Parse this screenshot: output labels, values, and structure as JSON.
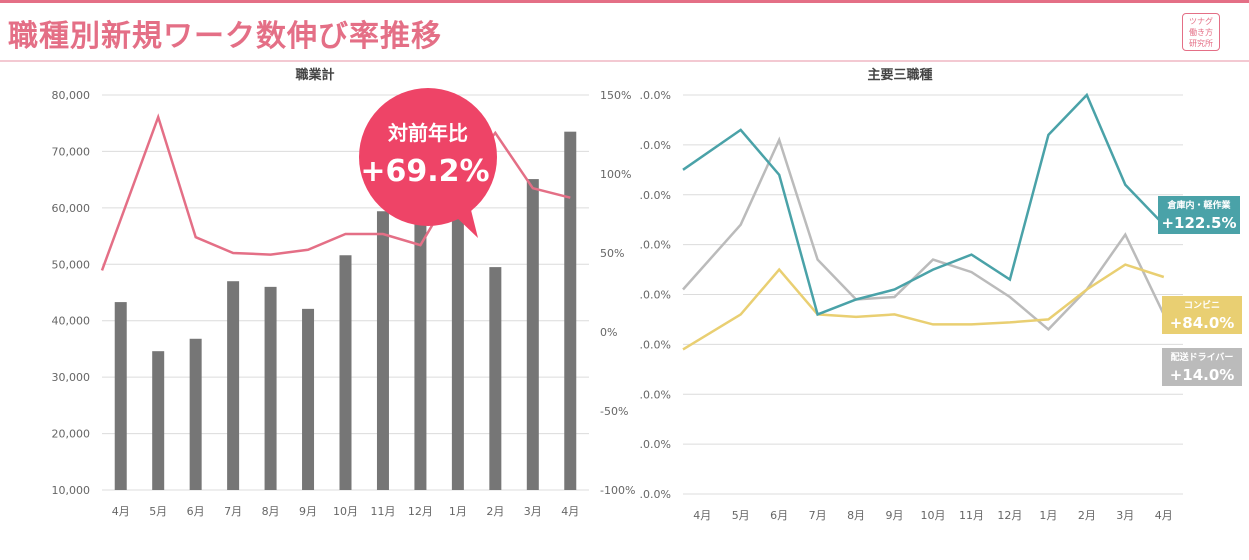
{
  "header": {
    "title": "職種別新規ワーク数伸び率推移",
    "logo_lines": [
      "ツナグ",
      "働き方",
      "研究所"
    ]
  },
  "colors": {
    "accent": "#e46f86",
    "bar": "#767676",
    "teal": "#4aa2a8",
    "yellow": "#e9cf72",
    "gray": "#bbbbbb",
    "bubble": "#ee4467"
  },
  "callout": {
    "line1": "対前年比",
    "line2": "+69.2%"
  },
  "chart_data": [
    {
      "type": "bar+line",
      "title": "職業計",
      "categories": [
        "4月",
        "5月",
        "6月",
        "7月",
        "8月",
        "9月",
        "10月",
        "11月",
        "12月",
        "1月",
        "2月",
        "3月",
        "4月"
      ],
      "bars": {
        "name": "新規ワーク数",
        "values": [
          43300,
          34600,
          36800,
          47000,
          46000,
          42100,
          51600,
          59400,
          59000,
          58800,
          49500,
          65100,
          73500
        ]
      },
      "line": {
        "name": "伸び率",
        "values": [
          39,
          136,
          60,
          50,
          49,
          52,
          62,
          62,
          55,
          95,
          126,
          91,
          85
        ]
      },
      "y_left": {
        "min": 10000,
        "max": 80000,
        "ticks": [
          "80,000",
          "70,000",
          "60,000",
          "50,000",
          "40,000",
          "30,000",
          "20,000",
          "10,000"
        ]
      },
      "y_right": {
        "min": -100,
        "max": 150,
        "ticks": [
          "150%",
          "100%",
          "50%",
          "0%",
          "-50%",
          "-100%"
        ]
      }
    },
    {
      "type": "line",
      "title": "主要三職種",
      "categories": [
        "4月",
        "5月",
        "6月",
        "7月",
        "8月",
        "9月",
        "10月",
        "11月",
        "12月",
        "1月",
        "2月",
        "3月",
        "4月"
      ],
      "y_ticks": [
        ".0.0%",
        ".0.0%",
        ".0.0%",
        ".0.0%",
        ".0.0%",
        ".0.0%",
        ".0.0%",
        ".0.0%",
        ".0.0%"
      ],
      "series": [
        {
          "name": "倉庫内・軽作業",
          "value_label": "+122.5%",
          "values": [
            6.5,
            7.3,
            6.4,
            3.6,
            3.9,
            4.1,
            4.5,
            4.8,
            4.3,
            7.2,
            8.0,
            6.2,
            5.4
          ]
        },
        {
          "name": "コンビニ",
          "value_label": "+84.0%",
          "values": [
            2.9,
            3.6,
            4.5,
            3.6,
            3.55,
            3.6,
            3.4,
            3.4,
            3.44,
            3.5,
            4.1,
            4.6,
            4.35
          ]
        },
        {
          "name": "配送ドライバー",
          "value_label": "+14.0%",
          "values": [
            4.1,
            5.4,
            7.1,
            4.7,
            3.9,
            3.95,
            4.7,
            4.45,
            3.95,
            3.3,
            4.1,
            5.2,
            3.6
          ]
        }
      ]
    }
  ]
}
